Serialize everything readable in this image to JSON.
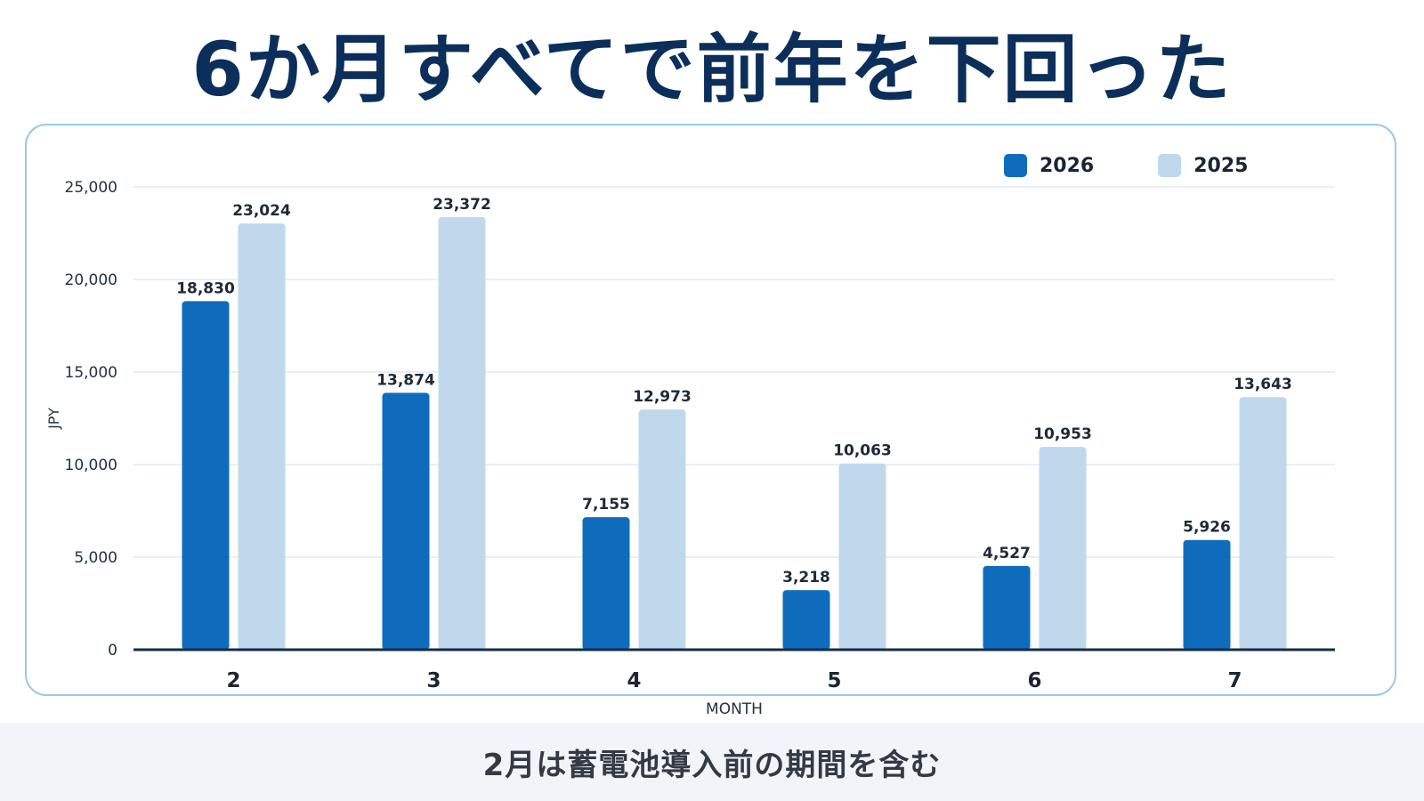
{
  "title": "6か月すべてで前年を下回った",
  "footer_note": "2月は蓄電池導入前の期間を含む",
  "colors": {
    "series_2026": "#0f6cbd",
    "series_2025": "#c0d8ec",
    "axis": "#132c4a",
    "grid": "#e3eaf2",
    "text": "#243142"
  },
  "chart_data": {
    "type": "bar",
    "categories": [
      "2",
      "3",
      "4",
      "5",
      "6",
      "7"
    ],
    "series": [
      {
        "name": "2026",
        "values": [
          18830,
          13874,
          7155,
          3218,
          4527,
          5926
        ],
        "labels": [
          "18,830",
          "13,874",
          "7,155",
          "3,218",
          "4,527",
          "5,926"
        ]
      },
      {
        "name": "2025",
        "values": [
          23024,
          23372,
          12973,
          10063,
          10953,
          13643
        ],
        "labels": [
          "23,024",
          "23,372",
          "12,973",
          "10,063",
          "10,953",
          "13,643"
        ]
      }
    ],
    "xlabel": "MONTH",
    "ylabel": "JPY",
    "ylim": [
      0,
      25000
    ],
    "yticks": [
      0,
      5000,
      10000,
      15000,
      20000,
      25000
    ],
    "ytick_labels": [
      "0",
      "5,000",
      "10,000",
      "15,000",
      "20,000",
      "25,000"
    ],
    "grid": true,
    "legend_position": "top-right"
  }
}
